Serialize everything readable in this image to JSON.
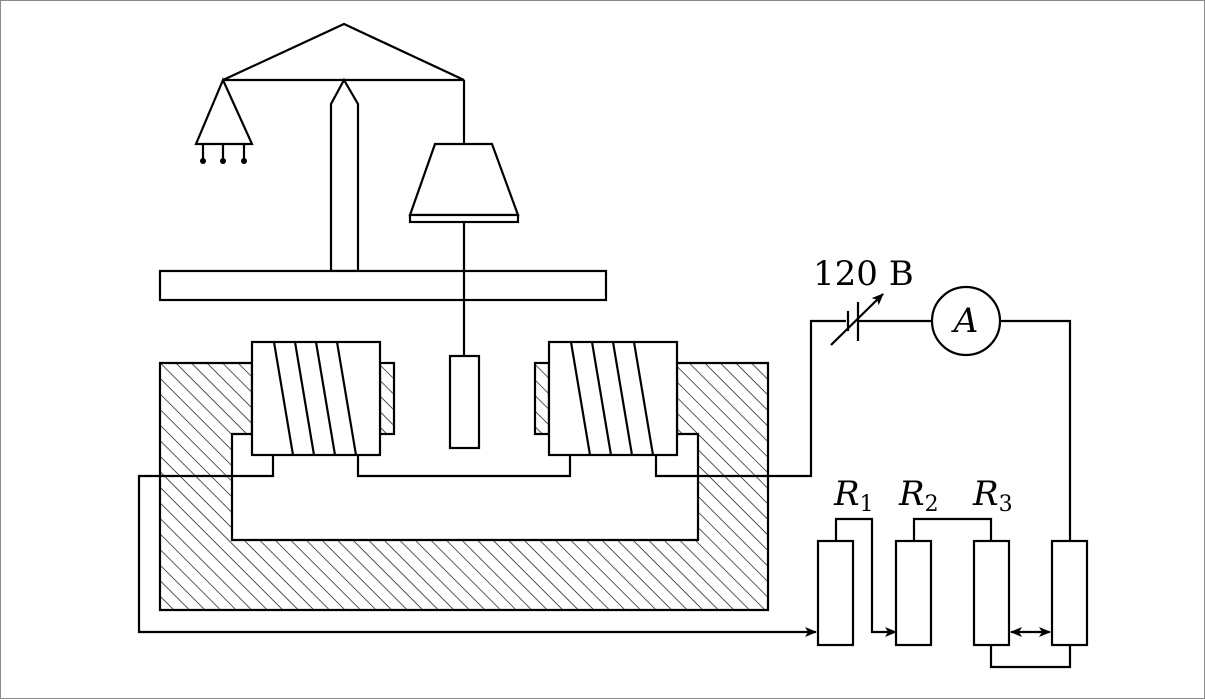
{
  "labels": {
    "voltage": "120 В",
    "ammeter": "A",
    "r1": {
      "letter": "R",
      "index": "1"
    },
    "r2": {
      "letter": "R",
      "index": "2"
    },
    "r3": {
      "letter": "R",
      "index": "3"
    }
  }
}
